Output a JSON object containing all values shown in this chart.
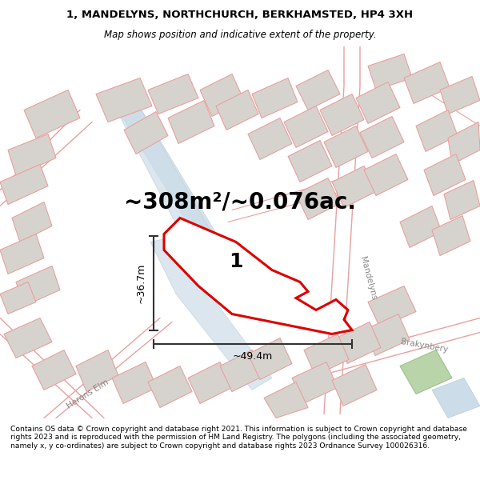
{
  "title_line1": "1, MANDELYNS, NORTHCHURCH, BERKHAMSTED, HP4 3XH",
  "title_line2": "Map shows position and indicative extent of the property.",
  "area_text": "~308m²/~0.076ac.",
  "label_number": "1",
  "dim_height": "~36.7m",
  "dim_width": "~49.4m",
  "footer_text": "Contains OS data © Crown copyright and database right 2021. This information is subject to Crown copyright and database rights 2023 and is reproduced with the permission of HM Land Registry. The polygons (including the associated geometry, namely x, y co-ordinates) are subject to Crown copyright and database rights 2023 Ordnance Survey 100026316.",
  "bg_color": "#ede9e3",
  "title_bg": "#ffffff",
  "footer_bg": "#ffffff",
  "plot_outline_color": "#dd0000",
  "plot_fill_color": "#ffffff",
  "building_fill": "#d6d3ce",
  "building_edge": "#e8a0a0",
  "road_edge": "#e8a0a0",
  "canal_fill": "#ccdce8",
  "green_fill": "#b8d4a8",
  "green_edge": "#a0c090",
  "dim_line_color": "#333333",
  "road_label_color": "#888888",
  "road_label_mandelyns": "Mandelyns",
  "road_label_brakynbery": "Brakynbery",
  "road_label_herons_elm": "Herons Elm",
  "title_fontsize": 9.5,
  "subtitle_fontsize": 8.5,
  "area_fontsize": 20,
  "dim_fontsize": 9,
  "label_fontsize": 18,
  "footer_fontsize": 6.6,
  "road_label_fontsize": 7.5
}
